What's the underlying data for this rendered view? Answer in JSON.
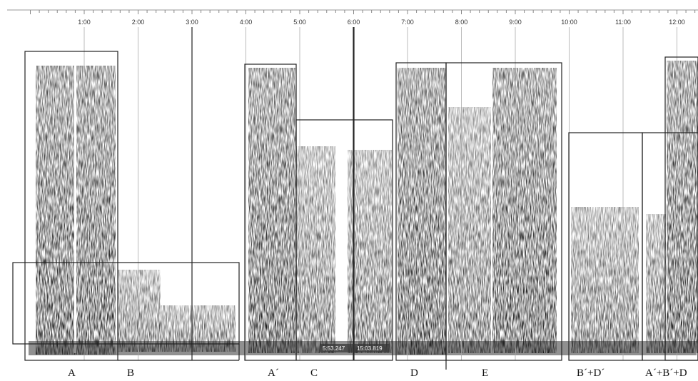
{
  "timeline": {
    "ticks": [
      "1:00",
      "2:00",
      "3:00",
      "4:00",
      "5:00",
      "6:00",
      "7:00",
      "8:00",
      "9:00",
      "10:00",
      "11:00",
      "12:00"
    ]
  },
  "sections": [
    {
      "label": "A"
    },
    {
      "label": "B"
    },
    {
      "label": "A´"
    },
    {
      "label": "C"
    },
    {
      "label": "D"
    },
    {
      "label": "E"
    },
    {
      "label": "B´+D´"
    },
    {
      "label": "A´+B´+D"
    }
  ],
  "readouts": [
    "5:53.247",
    "15:03.819"
  ]
}
